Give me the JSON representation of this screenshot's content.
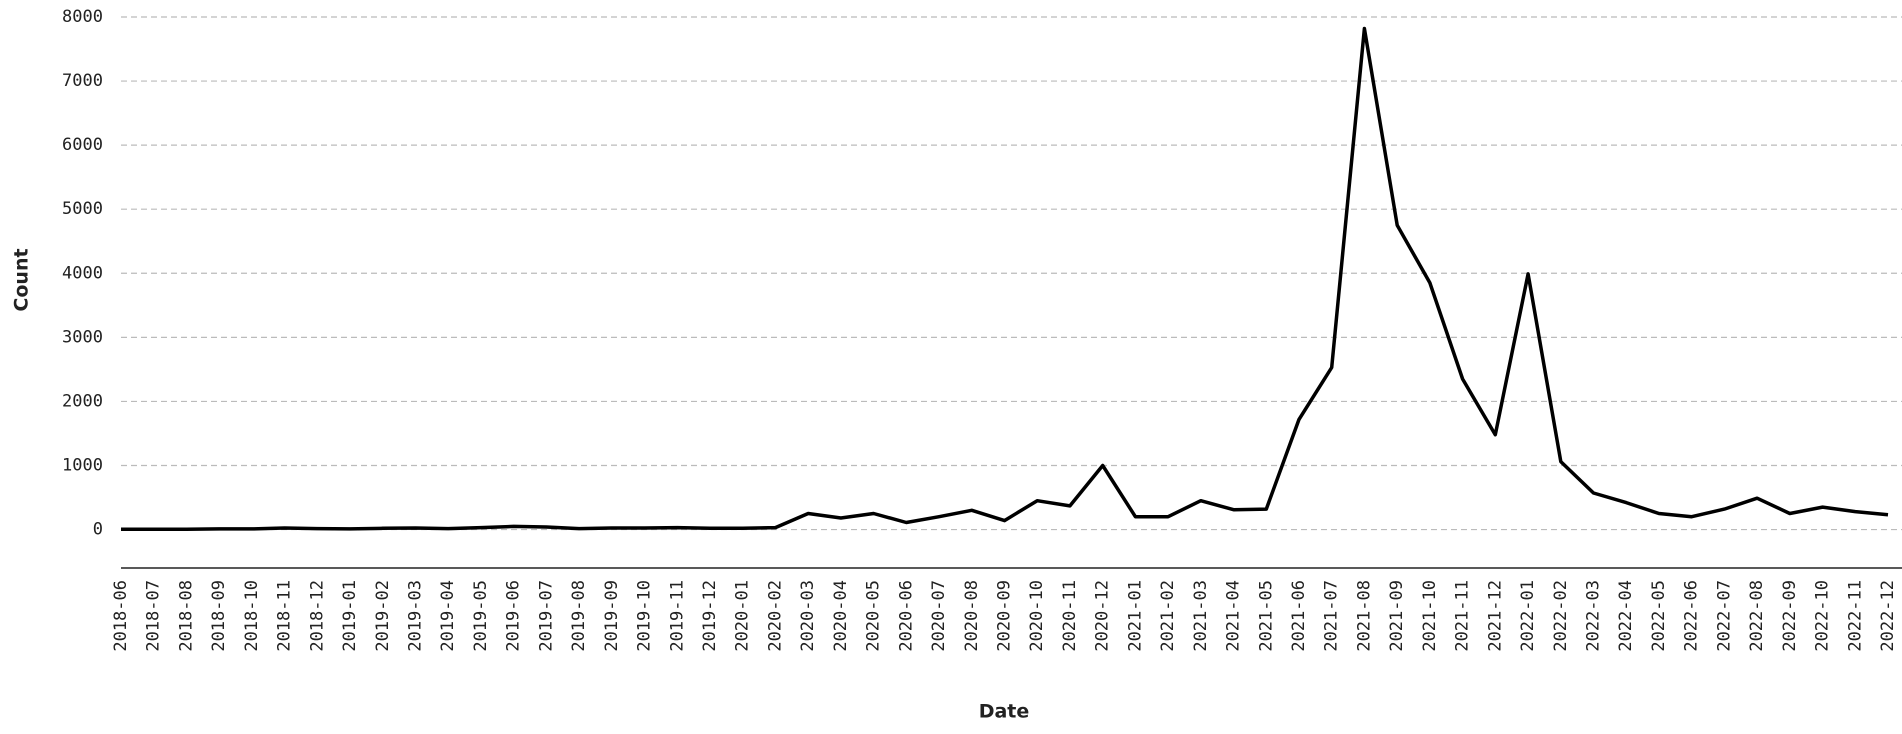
{
  "chart_data": {
    "type": "line",
    "x_label": "Date",
    "y_label": "Count",
    "x": [
      "2018-06",
      "2018-07",
      "2018-08",
      "2018-09",
      "2018-10",
      "2018-11",
      "2018-12",
      "2019-01",
      "2019-02",
      "2019-03",
      "2019-04",
      "2019-05",
      "2019-06",
      "2019-07",
      "2019-08",
      "2019-09",
      "2019-10",
      "2019-11",
      "2019-12",
      "2020-01",
      "2020-02",
      "2020-03",
      "2020-04",
      "2020-05",
      "2020-06",
      "2020-07",
      "2020-08",
      "2020-09",
      "2020-10",
      "2020-11",
      "2020-12",
      "2021-01",
      "2021-02",
      "2021-03",
      "2021-04",
      "2021-05",
      "2021-06",
      "2021-07",
      "2021-08",
      "2021-09",
      "2021-10",
      "2021-11",
      "2021-12",
      "2022-01",
      "2022-02",
      "2022-03",
      "2022-04",
      "2022-05",
      "2022-06",
      "2022-07",
      "2022-08",
      "2022-09",
      "2022-10",
      "2022-11",
      "2022-12"
    ],
    "series": [
      {
        "color": "#000000",
        "values": [
          5,
          5,
          5,
          10,
          10,
          25,
          15,
          10,
          20,
          25,
          15,
          30,
          50,
          40,
          15,
          25,
          25,
          30,
          20,
          20,
          30,
          250,
          180,
          250,
          110,
          200,
          300,
          140,
          450,
          370,
          1000,
          200,
          200,
          450,
          310,
          320,
          1720,
          2530,
          7820,
          4750,
          3850,
          2350,
          1480,
          3990,
          1060,
          570,
          420,
          250,
          200,
          320,
          490,
          250,
          350,
          280,
          230
        ]
      }
    ],
    "ylim": [
      -600,
      8000
    ],
    "yticks": [
      0,
      1000,
      2000,
      3000,
      4000,
      5000,
      6000,
      7000,
      8000
    ],
    "grid": true
  }
}
